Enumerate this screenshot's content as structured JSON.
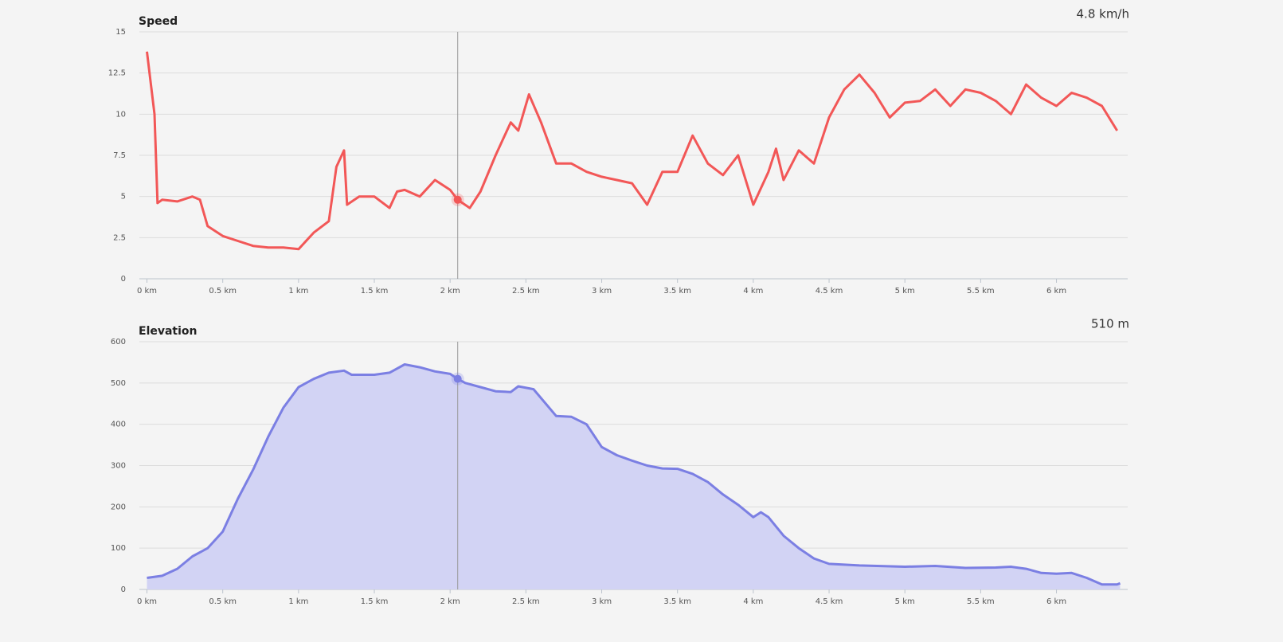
{
  "chart_data": [
    {
      "type": "line",
      "title": "Speed",
      "color": "#f25757",
      "x": [
        0,
        0.05,
        0.07,
        0.1,
        0.2,
        0.3,
        0.35,
        0.4,
        0.5,
        0.6,
        0.7,
        0.8,
        0.9,
        1.0,
        1.1,
        1.2,
        1.25,
        1.3,
        1.32,
        1.4,
        1.5,
        1.6,
        1.65,
        1.7,
        1.8,
        1.9,
        2.0,
        2.05,
        2.13,
        2.2,
        2.3,
        2.4,
        2.45,
        2.52,
        2.6,
        2.7,
        2.8,
        2.9,
        3.0,
        3.1,
        3.2,
        3.3,
        3.4,
        3.5,
        3.6,
        3.7,
        3.8,
        3.9,
        4.0,
        4.1,
        4.15,
        4.2,
        4.3,
        4.4,
        4.5,
        4.6,
        4.7,
        4.8,
        4.9,
        5.0,
        5.1,
        5.2,
        5.3,
        5.4,
        5.5,
        5.6,
        5.7,
        5.8,
        5.9,
        6.0,
        6.1,
        6.2,
        6.3,
        6.4
      ],
      "values": [
        13.8,
        10,
        4.6,
        4.8,
        4.7,
        5.0,
        4.8,
        3.2,
        2.6,
        2.3,
        2.0,
        1.9,
        1.9,
        1.8,
        2.8,
        3.5,
        6.8,
        7.8,
        4.5,
        5.0,
        5.0,
        4.3,
        5.3,
        5.4,
        5.0,
        6.0,
        5.4,
        4.8,
        4.3,
        5.3,
        7.5,
        9.5,
        9.0,
        11.2,
        9.5,
        7.0,
        7.0,
        6.5,
        6.2,
        6.0,
        5.8,
        4.5,
        6.5,
        6.5,
        8.7,
        7.0,
        6.3,
        7.5,
        4.5,
        6.5,
        7.9,
        6.0,
        7.8,
        7.0,
        9.8,
        11.5,
        12.4,
        11.3,
        9.8,
        10.7,
        10.8,
        11.5,
        10.5,
        11.5,
        11.3,
        10.8,
        10.0,
        11.8,
        11.0,
        10.5,
        11.3,
        11.0,
        10.5,
        9.0
      ],
      "xlim": [
        -0.05,
        6.47
      ],
      "ylim": [
        0,
        15
      ],
      "yticks": [
        0,
        2.5,
        5,
        7.5,
        10,
        12.5,
        15
      ],
      "xticks": [
        {
          "value": 0,
          "label": "0 km"
        },
        {
          "value": 0.5,
          "label": "0.5 km"
        },
        {
          "value": 1,
          "label": "1 km"
        },
        {
          "value": 1.5,
          "label": "1.5 km"
        },
        {
          "value": 2,
          "label": "2 km"
        },
        {
          "value": 2.5,
          "label": "2.5 km"
        },
        {
          "value": 3,
          "label": "3 km"
        },
        {
          "value": 3.5,
          "label": "3.5 km"
        },
        {
          "value": 4,
          "label": "4 km"
        },
        {
          "value": 4.5,
          "label": "4.5 km"
        },
        {
          "value": 5,
          "label": "5 km"
        },
        {
          "value": 5.5,
          "label": "5.5 km"
        },
        {
          "value": 6,
          "label": "6 km"
        }
      ],
      "grid": true,
      "cursor": {
        "x": 2.05,
        "value": 4.8,
        "label": "4.8 km/h"
      }
    },
    {
      "type": "area",
      "title": "Elevation",
      "color": "#7b7fe3",
      "fill_color": "#d2d3f4",
      "x": [
        0,
        0.1,
        0.2,
        0.3,
        0.4,
        0.5,
        0.6,
        0.7,
        0.8,
        0.9,
        1.0,
        1.1,
        1.2,
        1.3,
        1.35,
        1.5,
        1.6,
        1.7,
        1.8,
        1.9,
        2.0,
        2.05,
        2.1,
        2.2,
        2.3,
        2.4,
        2.45,
        2.55,
        2.7,
        2.8,
        2.9,
        3.0,
        3.1,
        3.2,
        3.3,
        3.4,
        3.5,
        3.6,
        3.7,
        3.8,
        3.9,
        4.0,
        4.05,
        4.1,
        4.2,
        4.3,
        4.4,
        4.5,
        4.7,
        5.0,
        5.2,
        5.4,
        5.6,
        5.7,
        5.8,
        5.9,
        6.0,
        6.1,
        6.2,
        6.3,
        6.4,
        6.42
      ],
      "values": [
        28,
        33,
        50,
        80,
        100,
        140,
        220,
        290,
        370,
        440,
        490,
        510,
        525,
        530,
        520,
        520,
        525,
        545,
        538,
        528,
        522,
        510,
        500,
        490,
        480,
        478,
        492,
        485,
        420,
        418,
        400,
        345,
        325,
        312,
        300,
        293,
        292,
        280,
        260,
        230,
        205,
        175,
        187,
        175,
        130,
        100,
        75,
        62,
        58,
        55,
        57,
        52,
        53,
        55,
        50,
        40,
        38,
        40,
        28,
        12,
        12,
        15
      ],
      "xlim": [
        -0.05,
        6.47
      ],
      "ylim": [
        0,
        600
      ],
      "yticks": [
        0,
        100,
        200,
        300,
        400,
        500,
        600
      ],
      "xticks": [
        {
          "value": 0,
          "label": "0 km"
        },
        {
          "value": 0.5,
          "label": "0.5 km"
        },
        {
          "value": 1,
          "label": "1 km"
        },
        {
          "value": 1.5,
          "label": "1.5 km"
        },
        {
          "value": 2,
          "label": "2 km"
        },
        {
          "value": 2.5,
          "label": "2.5 km"
        },
        {
          "value": 3,
          "label": "3 km"
        },
        {
          "value": 3.5,
          "label": "3.5 km"
        },
        {
          "value": 4,
          "label": "4 km"
        },
        {
          "value": 4.5,
          "label": "4.5 km"
        },
        {
          "value": 5,
          "label": "5 km"
        },
        {
          "value": 5.5,
          "label": "5.5 km"
        },
        {
          "value": 6,
          "label": "6 km"
        }
      ],
      "grid": true,
      "cursor": {
        "x": 2.05,
        "value": 510,
        "label": "510 m"
      }
    }
  ]
}
